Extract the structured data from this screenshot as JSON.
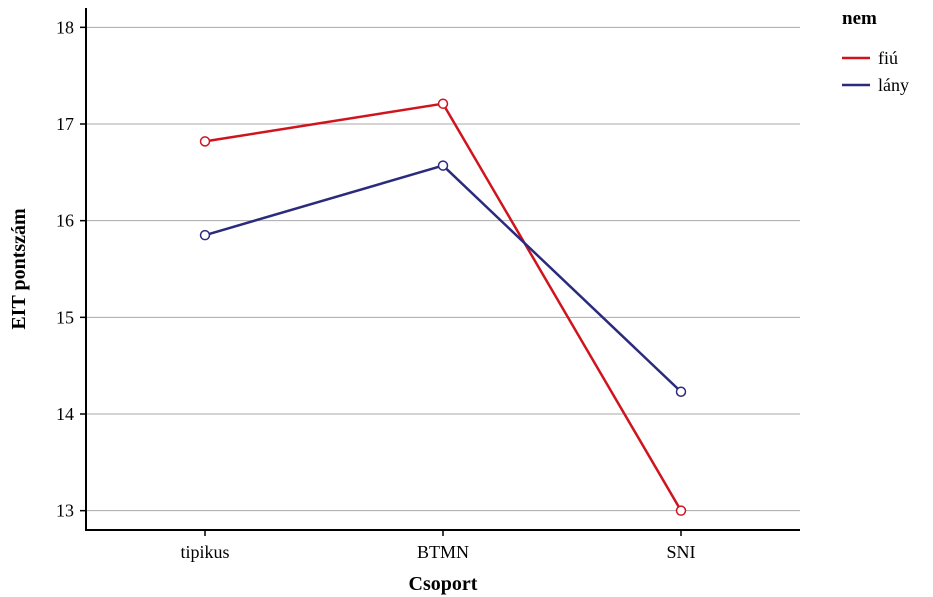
{
  "chart_data": {
    "type": "line",
    "categories": [
      "tipikus",
      "BTMN",
      "SNI"
    ],
    "series": [
      {
        "name": "fiú",
        "values": [
          16.82,
          17.21,
          13.0
        ],
        "color": "#d0141e"
      },
      {
        "name": "lány",
        "values": [
          15.85,
          16.57,
          14.23
        ],
        "color": "#2b2a7c"
      }
    ],
    "xlabel": "Csoport",
    "ylabel": "EIT pontszám",
    "ylim": [
      12.8,
      18.2
    ],
    "yticks": [
      13,
      14,
      15,
      16,
      17,
      18
    ],
    "grid": true,
    "legend": {
      "title": "nem",
      "position": "top-right"
    },
    "marker": "open-circle"
  }
}
